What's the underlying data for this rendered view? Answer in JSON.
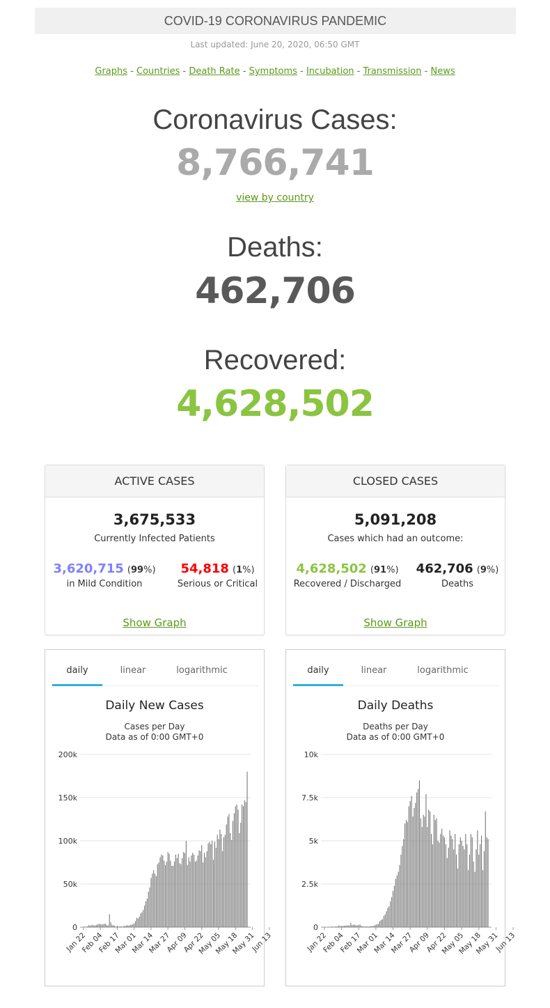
{
  "header": {
    "title": "COVID-19 CORONAVIRUS PANDEMIC",
    "last_updated": "Last updated: June 20, 2020, 06:50 GMT"
  },
  "nav": {
    "links": [
      "Graphs",
      "Countries",
      "Death Rate",
      "Symptoms",
      "Incubation",
      "Transmission",
      "News"
    ],
    "separator": "-"
  },
  "summary": {
    "cases_label": "Coronavirus Cases:",
    "cases_value": "8,766,741",
    "view_by_country": "view by country",
    "deaths_label": "Deaths:",
    "deaths_value": "462,706",
    "recovered_label": "Recovered:",
    "recovered_value": "4,628,502"
  },
  "active_cases": {
    "title": "ACTIVE CASES",
    "total": "3,675,533",
    "subtitle": "Currently Infected Patients",
    "mild_value": "3,620,715",
    "mild_pct": "99",
    "mild_label": "in Mild Condition",
    "serious_value": "54,818",
    "serious_pct": "1",
    "serious_label": "Serious or Critical",
    "show_graph": "Show Graph"
  },
  "closed_cases": {
    "title": "CLOSED CASES",
    "total": "5,091,208",
    "subtitle": "Cases which had an outcome:",
    "recovered_value": "4,628,502",
    "recovered_pct": "91",
    "recovered_label": "Recovered / Discharged",
    "deaths_value": "462,706",
    "deaths_pct": "9",
    "deaths_label": "Deaths",
    "show_graph": "Show Graph"
  },
  "colors": {
    "cases_num": "#aaaaaa",
    "deaths_num": "#595959",
    "recovered_num": "#8ac441",
    "mild": "#8080ff",
    "serious": "#ff0000",
    "link": "#5a9a1a",
    "tab_active": "#2fb0e0"
  },
  "chart_tabs": [
    "daily",
    "linear",
    "logarithmic"
  ],
  "chart_data": [
    {
      "type": "bar",
      "title": "Daily New Cases",
      "subtitle_lines": [
        "Cases per Day",
        "Data as of 0:00 GMT+0"
      ],
      "ylim": [
        0,
        200000
      ],
      "y_ticks": [
        "0",
        "50k",
        "100k",
        "150k",
        "200k"
      ],
      "y_tick_values": [
        0,
        50000,
        100000,
        150000,
        200000
      ],
      "x_ticks": [
        "Jan 22",
        "Feb 04",
        "Feb 17",
        "Mar 01",
        "Mar 14",
        "Mar 27",
        "Apr 09",
        "Apr 22",
        "May 05",
        "May 18",
        "May 31",
        "Jun 13"
      ],
      "grid": true,
      "values": [
        580,
        100,
        580,
        870,
        2300,
        1700,
        2100,
        2600,
        2000,
        2100,
        2600,
        3200,
        3900,
        3700,
        3200,
        3100,
        4000,
        3900,
        2300,
        2000,
        15000,
        5500,
        2600,
        2100,
        1900,
        500,
        1800,
        600,
        1000,
        800,
        500,
        1300,
        1500,
        1800,
        2200,
        1800,
        2600,
        2800,
        3700,
        4500,
        7100,
        10800,
        10100,
        12100,
        15800,
        17200,
        20000,
        25000,
        30000,
        33000,
        41000,
        46000,
        57000,
        62000,
        66000,
        62000,
        59000,
        73000,
        75000,
        81000,
        84000,
        83000,
        77000,
        72000,
        76000,
        87000,
        85000,
        77000,
        71000,
        71000,
        76000,
        84000,
        80000,
        85000,
        74000,
        73000,
        80000,
        87000,
        86000,
        100000,
        72000,
        81000,
        76000,
        83000,
        86000,
        84000,
        76000,
        77000,
        83000,
        89000,
        88000,
        95000,
        75000,
        86000,
        81000,
        88000,
        97000,
        99000,
        96000,
        100000,
        78000,
        99000,
        92000,
        107000,
        102000,
        113000,
        108000,
        88000,
        104000,
        107000,
        119000,
        128000,
        131000,
        109000,
        101000,
        123000,
        132000,
        140000,
        142000,
        136000,
        109000,
        121000,
        142000,
        140000,
        147000,
        145000,
        180000
      ]
    },
    {
      "type": "bar",
      "title": "Daily Deaths",
      "subtitle_lines": [
        "Deaths per Day",
        "Data as of 0:00 GMT+0"
      ],
      "ylim": [
        0,
        10000
      ],
      "y_ticks": [
        "0",
        "2.5k",
        "5k",
        "7.5k",
        "10k"
      ],
      "y_tick_values": [
        0,
        2500,
        5000,
        7500,
        10000
      ],
      "x_ticks": [
        "Jan 22",
        "Feb 04",
        "Feb 17",
        "Mar 01",
        "Mar 14",
        "Mar 27",
        "Apr 09",
        "Apr 22",
        "May 05",
        "May 18",
        "May 31",
        "Jun 13"
      ],
      "grid": true,
      "values": [
        17,
        1,
        8,
        16,
        14,
        26,
        49,
        2,
        38,
        42,
        46,
        103,
        64,
        66,
        73,
        86,
        89,
        97,
        108,
        97,
        254,
        121,
        143,
        142,
        106,
        98,
        137,
        150,
        71,
        52,
        29,
        44,
        47,
        35,
        42,
        64,
        58,
        70,
        106,
        136,
        177,
        198,
        350,
        421,
        460,
        650,
        740,
        920,
        1110,
        1200,
        1500,
        1750,
        2100,
        2400,
        2800,
        3000,
        3200,
        3600,
        4200,
        4700,
        5100,
        6000,
        6200,
        6100,
        7000,
        7300,
        7600,
        6400,
        6900,
        7200,
        7800,
        8000,
        8500,
        6300,
        5800,
        6500,
        6400,
        7700,
        5800,
        6800,
        6700,
        5400,
        4800,
        6500,
        6200,
        6300,
        5000,
        4900,
        5400,
        5700,
        5300,
        5200,
        4800,
        4000,
        4600,
        5600,
        5300,
        5100,
        4500,
        5400,
        4200,
        3400,
        4800,
        5200,
        5000,
        4700,
        4500,
        5400,
        4800,
        3300,
        4200,
        5400,
        5200,
        3800,
        3200,
        4500,
        5600,
        4200,
        4800,
        5300,
        3300,
        4400,
        6700,
        5200,
        5100
      ]
    }
  ]
}
